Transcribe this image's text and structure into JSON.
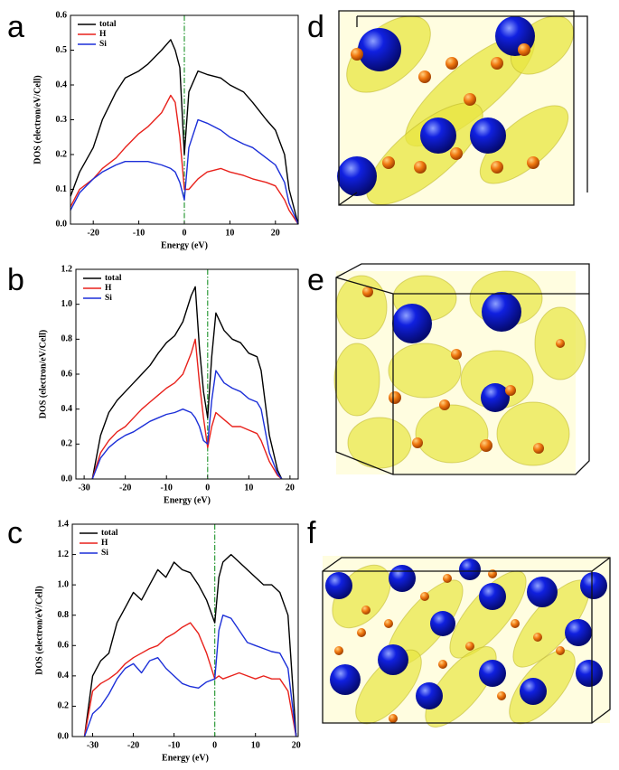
{
  "panels": [
    "a",
    "b",
    "c",
    "d",
    "e",
    "f"
  ],
  "chart_data": [
    {
      "type": "line",
      "xlabel": "Energy (eV)",
      "ylabel": "DOS (electron/eV/Cell)",
      "x": [
        -25,
        -23,
        -20,
        -18,
        -15,
        -13,
        -10,
        -8,
        -5,
        -3,
        -2,
        -1,
        0,
        1,
        3,
        5,
        8,
        10,
        13,
        15,
        18,
        20,
        22,
        23,
        25
      ],
      "series": [
        {
          "name": "total",
          "color": "#000000",
          "values": [
            0.08,
            0.15,
            0.22,
            0.3,
            0.38,
            0.42,
            0.44,
            0.46,
            0.5,
            0.53,
            0.5,
            0.45,
            0.2,
            0.38,
            0.44,
            0.43,
            0.42,
            0.4,
            0.38,
            0.35,
            0.3,
            0.27,
            0.2,
            0.1,
            0.0
          ]
        },
        {
          "name": "H",
          "color": "#e8211b",
          "values": [
            0.05,
            0.1,
            0.13,
            0.16,
            0.19,
            0.22,
            0.26,
            0.28,
            0.32,
            0.37,
            0.35,
            0.25,
            0.1,
            0.1,
            0.13,
            0.15,
            0.16,
            0.15,
            0.14,
            0.13,
            0.12,
            0.11,
            0.07,
            0.04,
            0.0
          ]
        },
        {
          "name": "Si",
          "color": "#1c2fd8",
          "values": [
            0.04,
            0.09,
            0.13,
            0.15,
            0.17,
            0.18,
            0.18,
            0.18,
            0.17,
            0.16,
            0.15,
            0.12,
            0.07,
            0.22,
            0.3,
            0.29,
            0.27,
            0.25,
            0.23,
            0.22,
            0.19,
            0.17,
            0.12,
            0.06,
            0.0
          ]
        }
      ],
      "xlim": [
        -25,
        25
      ],
      "xticks": [
        -20,
        -10,
        0,
        10,
        20
      ],
      "ylim": [
        0,
        0.6
      ],
      "yticks": [
        {
          "value": 0,
          "label": "0.0"
        },
        0.1,
        0.2,
        0.3,
        0.4,
        0.5,
        0.6
      ],
      "vline": {
        "x": 0,
        "color": "#2e9b3a"
      }
    },
    {
      "type": "line",
      "xlabel": "Energy (eV)",
      "ylabel": "DOS (electron/eV/Cell)",
      "x": [
        -28,
        -26,
        -24,
        -22,
        -20,
        -18,
        -16,
        -14,
        -12,
        -10,
        -8,
        -6,
        -4,
        -3,
        -2,
        -1,
        0,
        1,
        2,
        4,
        6,
        8,
        10,
        12,
        13,
        15,
        17,
        18
      ],
      "series": [
        {
          "name": "total",
          "color": "#000000",
          "values": [
            0,
            0.25,
            0.38,
            0.45,
            0.5,
            0.55,
            0.6,
            0.65,
            0.72,
            0.78,
            0.82,
            0.9,
            1.05,
            1.1,
            0.75,
            0.5,
            0.35,
            0.7,
            0.95,
            0.85,
            0.8,
            0.78,
            0.72,
            0.7,
            0.62,
            0.25,
            0.05,
            0
          ]
        },
        {
          "name": "H",
          "color": "#e8211b",
          "values": [
            0,
            0.15,
            0.22,
            0.27,
            0.3,
            0.35,
            0.4,
            0.44,
            0.48,
            0.52,
            0.55,
            0.6,
            0.72,
            0.8,
            0.55,
            0.35,
            0.18,
            0.3,
            0.38,
            0.34,
            0.3,
            0.3,
            0.28,
            0.26,
            0.22,
            0.1,
            0.02,
            0
          ]
        },
        {
          "name": "Si",
          "color": "#1c2fd8",
          "values": [
            0,
            0.12,
            0.18,
            0.22,
            0.25,
            0.27,
            0.3,
            0.33,
            0.35,
            0.37,
            0.38,
            0.4,
            0.38,
            0.35,
            0.3,
            0.22,
            0.2,
            0.45,
            0.62,
            0.55,
            0.52,
            0.5,
            0.46,
            0.44,
            0.4,
            0.15,
            0.03,
            0
          ]
        }
      ],
      "xlim": [
        -32,
        22
      ],
      "xticks": [
        -30,
        -20,
        -10,
        0,
        10,
        20
      ],
      "ylim": [
        0,
        1.2
      ],
      "yticks": [
        {
          "value": 0,
          "label": "0.0"
        },
        0.2,
        0.4,
        0.6,
        0.8,
        {
          "value": 1,
          "label": "1.0"
        },
        1.2
      ],
      "vline": {
        "x": 0,
        "color": "#2e9b3a"
      }
    },
    {
      "type": "line",
      "xlabel": "Energy (eV)",
      "ylabel": "DOS (electron/eV/Cell)",
      "x": [
        -32,
        -30,
        -28,
        -26,
        -24,
        -22,
        -20,
        -18,
        -16,
        -14,
        -12,
        -10,
        -8,
        -6,
        -4,
        -2,
        0,
        1,
        2,
        4,
        6,
        8,
        10,
        12,
        14,
        16,
        18,
        20
      ],
      "series": [
        {
          "name": "total",
          "color": "#000000",
          "values": [
            0,
            0.4,
            0.5,
            0.55,
            0.75,
            0.85,
            0.95,
            0.9,
            1.0,
            1.1,
            1.05,
            1.15,
            1.1,
            1.08,
            1.0,
            0.9,
            0.75,
            1.05,
            1.15,
            1.2,
            1.15,
            1.1,
            1.05,
            1.0,
            1.0,
            0.95,
            0.8,
            0
          ]
        },
        {
          "name": "H",
          "color": "#e8211b",
          "values": [
            0,
            0.3,
            0.35,
            0.38,
            0.42,
            0.48,
            0.52,
            0.55,
            0.58,
            0.6,
            0.65,
            0.68,
            0.72,
            0.75,
            0.68,
            0.55,
            0.38,
            0.4,
            0.38,
            0.4,
            0.42,
            0.4,
            0.38,
            0.4,
            0.38,
            0.38,
            0.3,
            0
          ]
        },
        {
          "name": "Si",
          "color": "#1c2fd8",
          "values": [
            0,
            0.15,
            0.2,
            0.28,
            0.38,
            0.45,
            0.48,
            0.42,
            0.5,
            0.52,
            0.45,
            0.4,
            0.35,
            0.33,
            0.32,
            0.36,
            0.38,
            0.7,
            0.8,
            0.78,
            0.7,
            0.62,
            0.6,
            0.58,
            0.56,
            0.55,
            0.45,
            0
          ]
        }
      ],
      "xlim": [
        -35,
        20.5
      ],
      "xticks": [
        -30,
        -20,
        -10,
        0,
        10,
        20
      ],
      "ylim": [
        0,
        1.4
      ],
      "yticks": [
        {
          "value": 0,
          "label": "0.0"
        },
        0.2,
        0.4,
        0.6,
        0.8,
        {
          "value": 1,
          "label": "1.0"
        },
        1.2,
        1.4
      ],
      "vline": {
        "x": 0,
        "color": "#2e9b3a"
      }
    }
  ]
}
